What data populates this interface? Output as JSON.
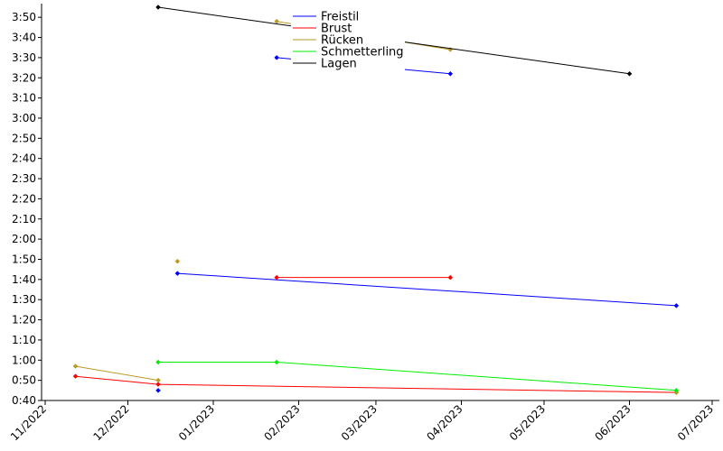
{
  "chart_data": {
    "type": "line",
    "title": "",
    "xlabel": "",
    "ylabel": "",
    "x_axis": {
      "kind": "date",
      "range": [
        "2022-11-01",
        "2023-07-01"
      ],
      "ticks": [
        {
          "date": "2022-11-01",
          "label": "11/2022"
        },
        {
          "date": "2022-12-01",
          "label": "12/2022"
        },
        {
          "date": "2023-01-01",
          "label": "01/2023"
        },
        {
          "date": "2023-02-01",
          "label": "02/2023"
        },
        {
          "date": "2023-03-01",
          "label": "03/2023"
        },
        {
          "date": "2023-04-01",
          "label": "04/2023"
        },
        {
          "date": "2023-05-01",
          "label": "05/2023"
        },
        {
          "date": "2023-06-01",
          "label": "06/2023"
        },
        {
          "date": "2023-07-01",
          "label": "07/2023"
        }
      ]
    },
    "y_axis": {
      "kind": "time_mm_ss",
      "range": [
        "0:40",
        "3:55"
      ],
      "ticks": [
        "0:40",
        "0:50",
        "1:00",
        "1:10",
        "1:20",
        "1:30",
        "1:40",
        "1:50",
        "2:00",
        "2:10",
        "2:20",
        "2:30",
        "2:40",
        "2:50",
        "3:00",
        "3:10",
        "3:20",
        "3:30",
        "3:40",
        "3:50"
      ]
    },
    "grid": false,
    "legend": {
      "placement": "top-center"
    },
    "series": [
      {
        "name": "Freistil",
        "color": "#0000ff",
        "groups": [
          [
            {
              "x": "2022-12-12",
              "y": "0:45"
            }
          ],
          [
            {
              "x": "2022-12-19",
              "y": "1:43"
            },
            {
              "x": "2023-06-18",
              "y": "1:27"
            }
          ],
          [
            {
              "x": "2023-01-24",
              "y": "3:30"
            },
            {
              "x": "2023-03-28",
              "y": "3:22"
            }
          ]
        ]
      },
      {
        "name": "Brust",
        "color": "#ff0000",
        "groups": [
          [
            {
              "x": "2022-11-12",
              "y": "0:52"
            },
            {
              "x": "2022-12-12",
              "y": "0:48"
            },
            {
              "x": "2023-06-18",
              "y": "0:44"
            }
          ],
          [
            {
              "x": "2023-01-24",
              "y": "1:41"
            },
            {
              "x": "2023-03-28",
              "y": "1:41"
            }
          ]
        ]
      },
      {
        "name": "Rücken",
        "color": "#bb9922",
        "groups": [
          [
            {
              "x": "2022-11-12",
              "y": "0:57"
            },
            {
              "x": "2022-12-12",
              "y": "0:50"
            }
          ],
          [
            {
              "x": "2022-12-19",
              "y": "1:49"
            }
          ],
          [
            {
              "x": "2023-01-24",
              "y": "3:48"
            },
            {
              "x": "2023-03-28",
              "y": "3:34"
            }
          ],
          [
            {
              "x": "2023-06-18",
              "y": "0:44"
            }
          ]
        ]
      },
      {
        "name": "Schmetterling",
        "color": "#00ee00",
        "groups": [
          [
            {
              "x": "2022-12-12",
              "y": "0:59"
            },
            {
              "x": "2023-01-24",
              "y": "0:59"
            },
            {
              "x": "2023-06-18",
              "y": "0:45"
            }
          ]
        ]
      },
      {
        "name": "Lagen",
        "color": "#000000",
        "groups": [
          [
            {
              "x": "2022-12-12",
              "y": "3:55"
            },
            {
              "x": "2023-06-01",
              "y": "3:22"
            }
          ]
        ]
      }
    ]
  }
}
